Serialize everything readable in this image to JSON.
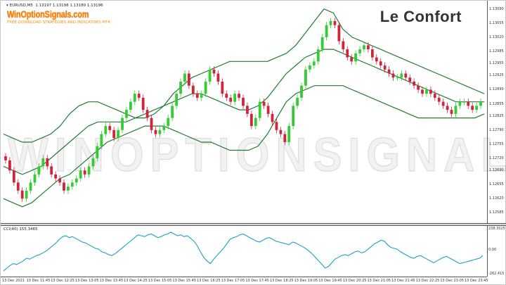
{
  "header": {
    "symbol": "EURUSD,M5",
    "ohlc": "1.13197 1.13198 1.13180 1.13196"
  },
  "branding": {
    "logo": "WinOptionSignals.com",
    "tagline": "FREE DOWNLOAD STRATEGIES AND INDICATORS MT4",
    "title": "Le Confort",
    "watermark": "WINOPTIONSIGNALS.COM"
  },
  "price_axis": [
    "1.13090",
    "1.13055",
    "1.13020",
    "1.12985",
    "1.12955",
    "1.12925",
    "1.12890",
    "1.12855",
    "1.12825",
    "1.12790",
    "1.12755",
    "1.12720",
    "1.12690",
    "1.12655",
    "1.12620",
    "1.12585"
  ],
  "indicator": {
    "label": "CCI(40) 155.3465",
    "axis": [
      "238.3025",
      "0.00",
      "-262.415"
    ]
  },
  "time_axis": [
    "13 Dec 2021",
    "13 Dec 11:45",
    "13 Dec 12:25",
    "13 Dec 13:05",
    "13 Dec 13:45",
    "13 Dec 14:25",
    "13 Dec 15:05",
    "13 Dec 15:45",
    "13 Dec 16:25",
    "13 Dec 17:05",
    "13 Dec 17:45",
    "13 Dec 18:25",
    "13 Dec 19:05",
    "13 Dec 19:45",
    "13 Dec 20:25",
    "13 Dec 21:05",
    "13 Dec 21:45",
    "13 Dec 22:25",
    "13 Dec 23:05",
    "13 Dec 23:45"
  ],
  "colors": {
    "bull": "#33cc33",
    "bear": "#d0243c",
    "band": "#1e7d32",
    "cci": "#1aa3c0"
  },
  "chart_data": {
    "type": "candlestick",
    "symbol": "EURUSD",
    "timeframe": "M5",
    "close": [
      1.12715,
      1.1269,
      1.1266,
      1.1264,
      1.1262,
      1.1264,
      1.1266,
      1.1268,
      1.127,
      1.1272,
      1.127,
      1.1268,
      1.1267,
      1.1266,
      1.1264,
      1.1265,
      1.1266,
      1.1267,
      1.1269,
      1.1268,
      1.127,
      1.1272,
      1.1275,
      1.1278,
      1.128,
      1.1279,
      1.1277,
      1.1279,
      1.1282,
      1.1284,
      1.1286,
      1.1288,
      1.1287,
      1.1284,
      1.1282,
      1.1279,
      1.1278,
      1.1279,
      1.128,
      1.1282,
      1.1285,
      1.1288,
      1.1291,
      1.1293,
      1.129,
      1.1288,
      1.1287,
      1.1288,
      1.1291,
      1.1294,
      1.1293,
      1.1291,
      1.1288,
      1.1287,
      1.1286,
      1.1288,
      1.1287,
      1.1285,
      1.1283,
      1.128,
      1.1282,
      1.1286,
      1.1285,
      1.1283,
      1.1281,
      1.1279,
      1.1278,
      1.1276,
      1.128,
      1.1285,
      1.1287,
      1.129,
      1.1294,
      1.1295,
      1.1296,
      1.1299,
      1.1302,
      1.1305,
      1.1306,
      1.1305,
      1.1301,
      1.1299,
      1.1297,
      1.1296,
      1.1298,
      1.1299,
      1.13,
      1.1299,
      1.1297,
      1.1296,
      1.1295,
      1.1294,
      1.1293,
      1.1292,
      1.1292,
      1.1293,
      1.1292,
      1.1291,
      1.129,
      1.1289,
      1.1288,
      1.1289,
      1.1288,
      1.1287,
      1.1286,
      1.1285,
      1.1284,
      1.1283,
      1.1285,
      1.1286,
      1.1286,
      1.1285,
      1.1284,
      1.1285,
      1.1286
    ],
    "bands": {
      "upper": [
        1.1278,
        1.1277,
        1.1276,
        1.1276,
        1.1277,
        1.1278,
        1.128,
        1.1283,
        1.1285,
        1.1286,
        1.1286,
        1.1285,
        1.1284,
        1.1283,
        1.1282,
        1.1282,
        1.1283,
        1.1285,
        1.1288,
        1.129,
        1.1292,
        1.1293,
        1.1294,
        1.1295,
        1.1296,
        1.1296,
        1.1296,
        1.1296,
        1.1296,
        1.1297,
        1.1298,
        1.13,
        1.1303,
        1.1306,
        1.1309,
        1.1308,
        1.1304,
        1.1302,
        1.1301,
        1.13,
        1.1299,
        1.1298,
        1.1297,
        1.1296,
        1.1295,
        1.1294,
        1.1293,
        1.1292,
        1.1291,
        1.129,
        1.1289,
        1.1288
      ],
      "middle": [
        1.127,
        1.1269,
        1.1268,
        1.1269,
        1.127,
        1.1272,
        1.1274,
        1.1276,
        1.1278,
        1.128,
        1.1281,
        1.1281,
        1.1281,
        1.1281,
        1.1282,
        1.1283,
        1.1284,
        1.1285,
        1.1286,
        1.1287,
        1.1288,
        1.1288,
        1.1287,
        1.1286,
        1.1285,
        1.1284,
        1.1284,
        1.1285,
        1.1287,
        1.129,
        1.1293,
        1.1295,
        1.1297,
        1.1298,
        1.1299,
        1.1299,
        1.1298,
        1.1297,
        1.1296,
        1.1295,
        1.1294,
        1.1293,
        1.1292,
        1.1291,
        1.129,
        1.1289,
        1.1288,
        1.1287,
        1.1286,
        1.1286,
        1.1286,
        1.1286
      ],
      "lower": [
        1.1262,
        1.1261,
        1.126,
        1.1261,
        1.1263,
        1.1265,
        1.1267,
        1.1268,
        1.127,
        1.1272,
        1.1274,
        1.1276,
        1.1277,
        1.1278,
        1.1279,
        1.128,
        1.128,
        1.128,
        1.1279,
        1.1278,
        1.1277,
        1.1276,
        1.1276,
        1.1275,
        1.1274,
        1.1274,
        1.1274,
        1.1275,
        1.1278,
        1.1282,
        1.1286,
        1.1288,
        1.1289,
        1.129,
        1.129,
        1.129,
        1.129,
        1.1289,
        1.1288,
        1.1287,
        1.1286,
        1.1285,
        1.1284,
        1.1283,
        1.1282,
        1.1282,
        1.1282,
        1.1282,
        1.1282,
        1.1282,
        1.1282,
        1.1283
      ]
    },
    "cci": [
      -230,
      -200,
      -170,
      -150,
      -160,
      -140,
      -120,
      -90,
      -100,
      -80,
      -60,
      -50,
      -30,
      -10,
      20,
      50,
      80,
      120,
      150,
      160,
      140,
      150,
      130,
      110,
      90,
      80,
      60,
      40,
      20,
      10,
      -20,
      -30,
      -50,
      -60,
      -40,
      -10,
      20,
      50,
      80,
      110,
      140,
      170,
      160,
      150,
      170,
      180,
      160,
      140,
      150,
      170,
      180,
      200,
      180,
      160,
      170,
      150,
      160,
      130,
      100,
      50,
      -20,
      -80,
      -120,
      -150,
      -100,
      -60,
      -20,
      20,
      70,
      120,
      140,
      150,
      170,
      180,
      160,
      140,
      120,
      100,
      90,
      110,
      130,
      140,
      120,
      100,
      90,
      80,
      70,
      60,
      90,
      80,
      60,
      40,
      20,
      -10,
      -40,
      -80,
      -120,
      -160,
      -200,
      -180,
      -140,
      -100,
      -80,
      -60,
      -50,
      -60,
      -40,
      -20,
      -10,
      -30,
      -20,
      10,
      40,
      70,
      90,
      110,
      100,
      60,
      30,
      20,
      10,
      -20,
      -40,
      -60,
      -80,
      -90,
      -70,
      -60,
      -80,
      -100,
      -120,
      -140,
      -120,
      -100,
      -80,
      -70,
      -90,
      -110,
      -130,
      -150,
      -140,
      -130,
      -120,
      -110,
      -100,
      -90,
      -60
    ],
    "price_range": [
      1.1257,
      1.131
    ],
    "cci_range": [
      -262.415,
      238.3025
    ],
    "grid": false
  }
}
